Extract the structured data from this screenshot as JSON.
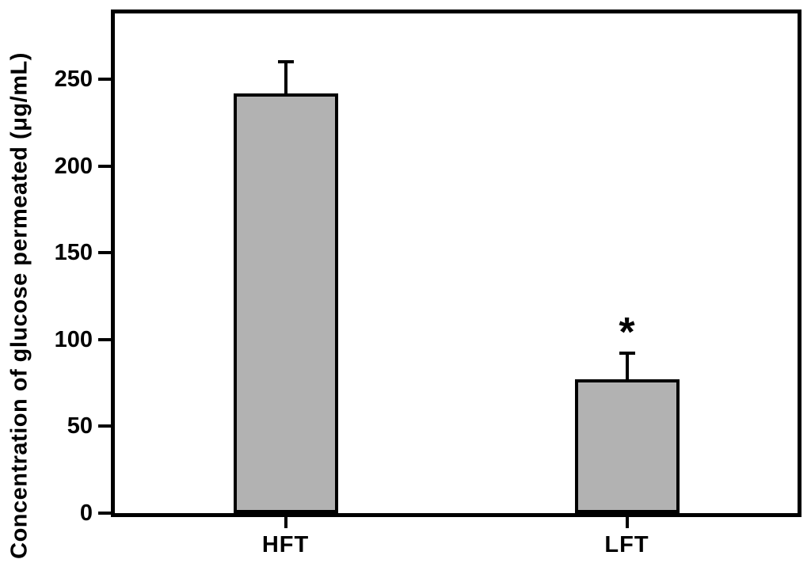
{
  "figure": {
    "background": "#ffffff",
    "bar_fill": "#b2b2b2",
    "axis_color": "#000000"
  },
  "chart_data": {
    "type": "bar",
    "title": "",
    "xlabel": "",
    "ylabel": "Concentration of glucose permeated (μg/mL)",
    "categories": [
      "HFT",
      "LFT"
    ],
    "values": [
      242,
      77
    ],
    "errors": [
      18,
      15
    ],
    "error_direction": "plus",
    "annotations": [
      {
        "category": "LFT",
        "text": "*",
        "meaning": "significance-marker"
      }
    ],
    "ylim": [
      0,
      288
    ],
    "yticks": [
      0,
      50,
      100,
      150,
      200,
      250
    ],
    "grid": false,
    "legend": null
  }
}
